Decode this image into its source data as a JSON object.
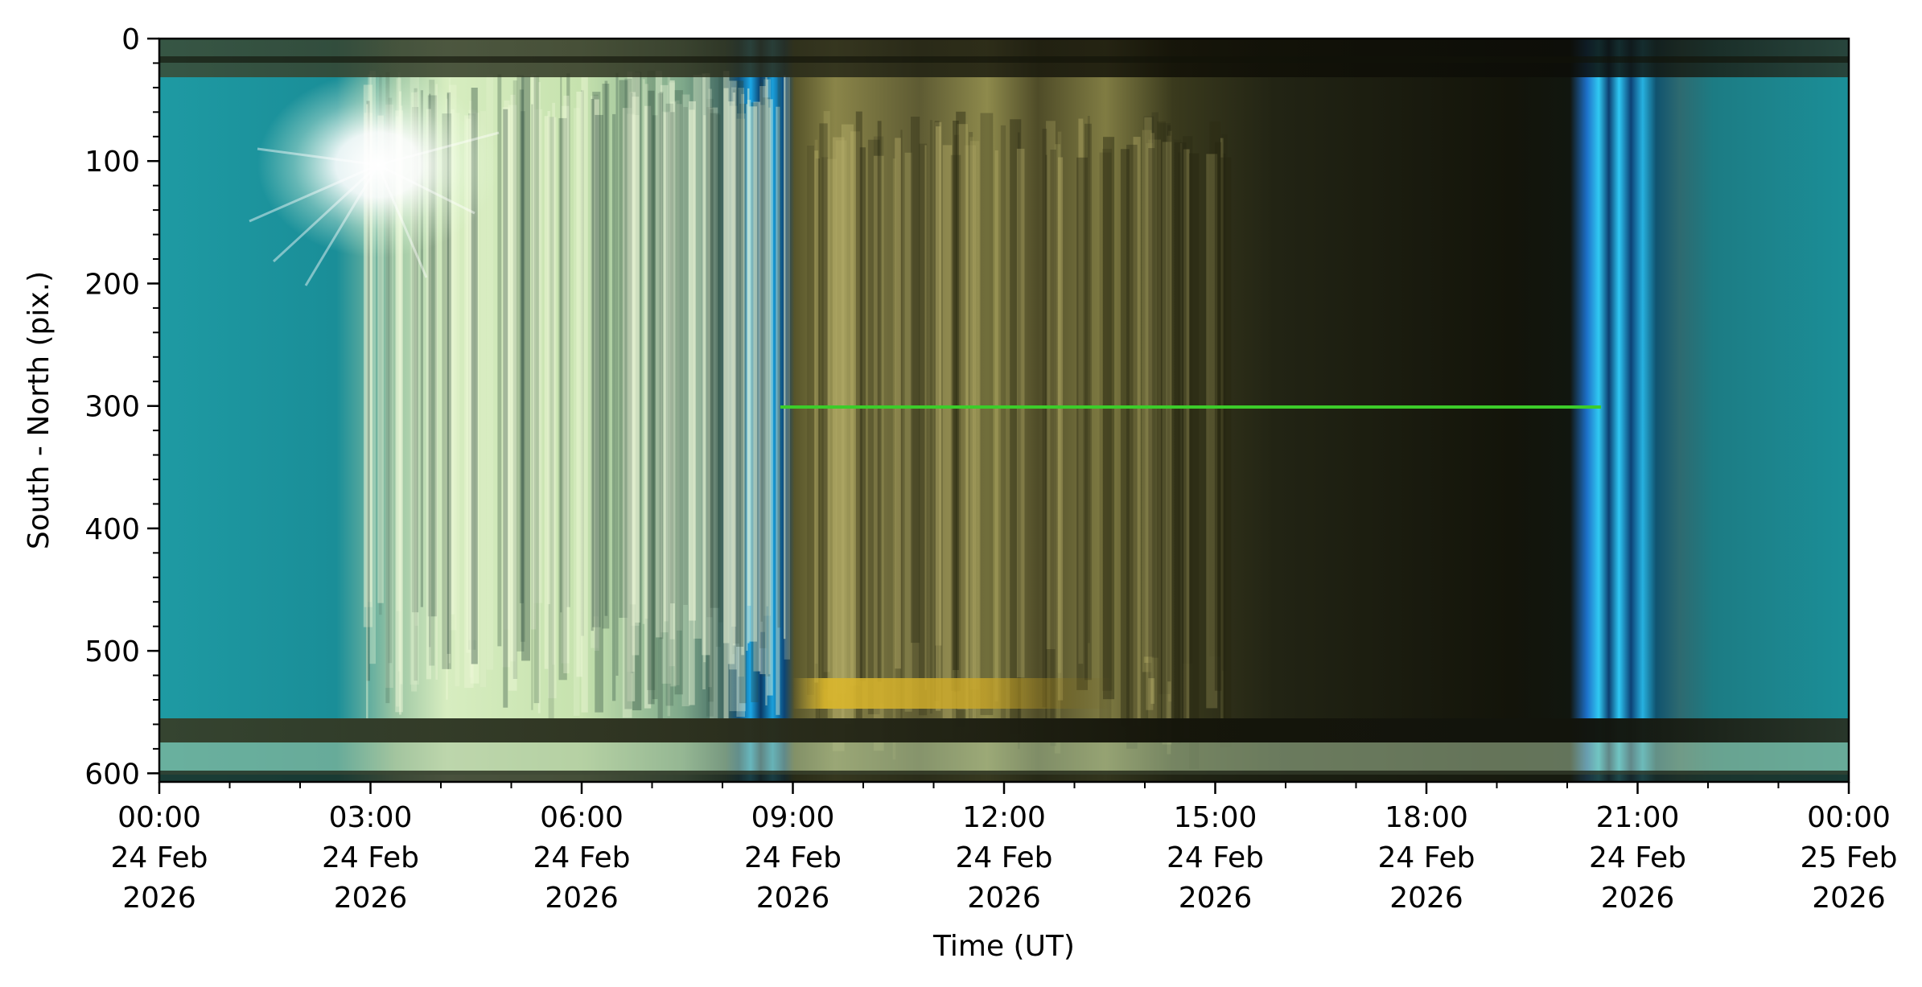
{
  "chart_data": {
    "type": "heatmap",
    "title": "",
    "xlabel": "Time (UT)",
    "ylabel": "South - North (pix.)",
    "x_range": [
      "2026-02-24T00:00",
      "2026-02-25T00:00"
    ],
    "y_range": [
      0,
      607
    ],
    "y_inverted": true,
    "x_ticks": [
      {
        "time": "00:00",
        "day": "24 Feb",
        "year": "2026",
        "hour": 0
      },
      {
        "time": "03:00",
        "day": "24 Feb",
        "year": "2026",
        "hour": 3
      },
      {
        "time": "06:00",
        "day": "24 Feb",
        "year": "2026",
        "hour": 6
      },
      {
        "time": "09:00",
        "day": "24 Feb",
        "year": "2026",
        "hour": 9
      },
      {
        "time": "12:00",
        "day": "24 Feb",
        "year": "2026",
        "hour": 12
      },
      {
        "time": "15:00",
        "day": "24 Feb",
        "year": "2026",
        "hour": 15
      },
      {
        "time": "18:00",
        "day": "24 Feb",
        "year": "2026",
        "hour": 18
      },
      {
        "time": "21:00",
        "day": "24 Feb",
        "year": "2026",
        "hour": 21
      },
      {
        "time": "00:00",
        "day": "25 Feb",
        "year": "2026",
        "hour": 24
      }
    ],
    "y_ticks": [
      0,
      100,
      200,
      300,
      400,
      500,
      600
    ],
    "x_minor_step_hours": 1,
    "y_minor_step": 20,
    "grid": false,
    "colors": {
      "day_cyan": "#1f8f96",
      "bright_green_white": "#e6f5c8",
      "twilight_blue": "#1a9be0",
      "night_olive": "#6f6c3a",
      "night_dark": "#151508",
      "horizontal_line": "#3ccc2a",
      "aurora_yellow": "#d8b52a"
    }
  }
}
